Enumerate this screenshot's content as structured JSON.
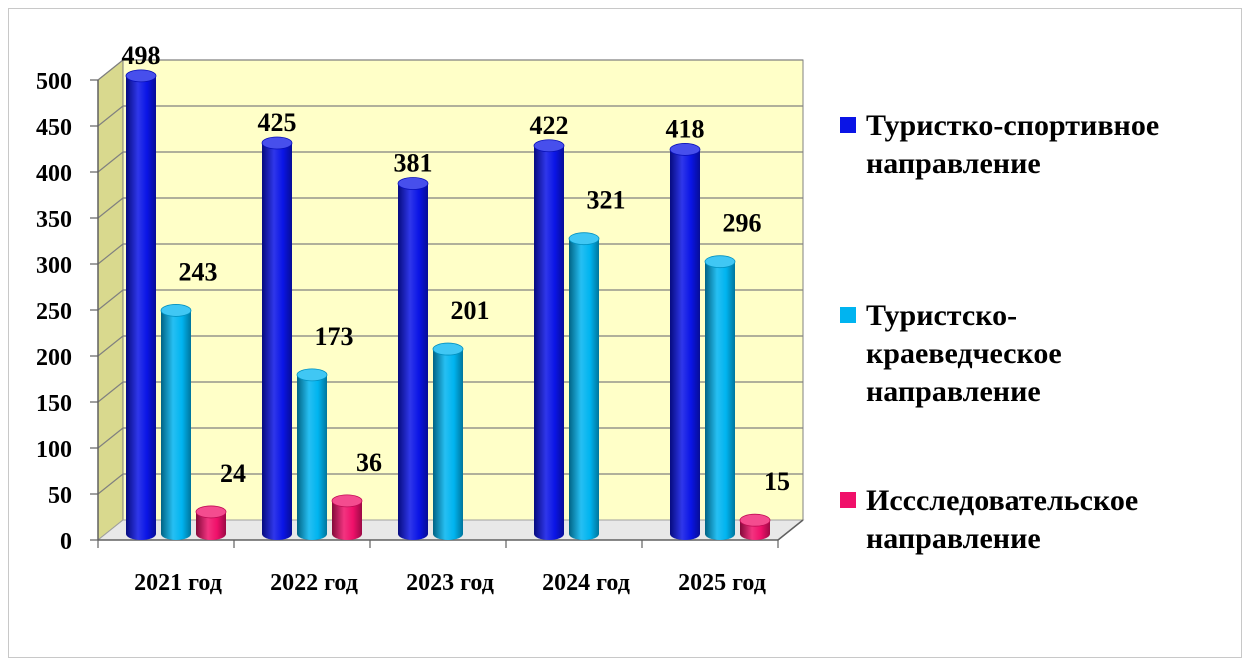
{
  "chart_data": {
    "type": "bar",
    "categories": [
      "2021 год",
      "2022 год",
      "2023 год",
      "2024 год",
      "2025 год"
    ],
    "series": [
      {
        "name": "Туристко-спортивное направление",
        "name_lines": [
          "Туристко-спортивное",
          "направление"
        ],
        "color": "#0a14e6",
        "values": [
          498,
          425,
          381,
          422,
          418
        ],
        "labels": [
          "498",
          "425",
          "381",
          "422",
          "418"
        ]
      },
      {
        "name": "Туристско-краеведческое направление",
        "name_lines": [
          "Туристско-",
          "краеведческое",
          "направление"
        ],
        "color": "#00b4f0",
        "values": [
          243,
          173,
          201,
          321,
          296
        ],
        "labels": [
          "243",
          "173",
          "201",
          "321",
          "296"
        ]
      },
      {
        "name": "Иссследовательское направление",
        "name_lines": [
          "Иссследовательское",
          "направление"
        ],
        "color": "#f0106a",
        "values": [
          24,
          36,
          0,
          0,
          15
        ],
        "labels": [
          "24",
          "36",
          "",
          "",
          "15"
        ]
      }
    ],
    "yticks": [
      "0",
      "50",
      "100",
      "150",
      "200",
      "250",
      "300",
      "350",
      "400",
      "450",
      "500"
    ],
    "ylim": [
      0,
      500
    ],
    "grid": true,
    "legend_position": "right",
    "plot_background": "#ffffc8"
  }
}
